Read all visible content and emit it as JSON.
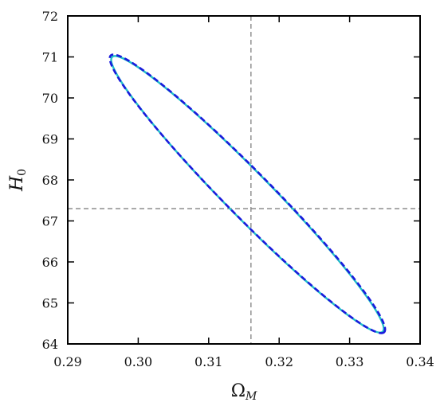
{
  "chart_data": {
    "type": "line",
    "title": "",
    "xlabel": "Ω",
    "xlabel_sub": "M",
    "ylabel": "H",
    "ylabel_sub": "0",
    "xlim": [
      0.29,
      0.34
    ],
    "ylim": [
      64,
      72
    ],
    "xticks": [
      0.29,
      0.3,
      0.31,
      0.32,
      0.33,
      0.34
    ],
    "xtick_labels": [
      "0.29",
      "0.30",
      "0.31",
      "0.32",
      "0.33",
      "0.34"
    ],
    "yticks": [
      64,
      65,
      66,
      67,
      68,
      69,
      70,
      71,
      72
    ],
    "ytick_labels": [
      "64",
      "65",
      "66",
      "67",
      "68",
      "69",
      "70",
      "71",
      "72"
    ],
    "grid": false,
    "reference_lines": {
      "x": 0.316,
      "y": 67.3,
      "color": "#808080",
      "style": "dashed"
    },
    "series": [
      {
        "style": "solid",
        "color": "#20c0c8",
        "ellipse": {
          "center": [
            0.3155,
            67.65
          ],
          "x_range": [
            0.2963,
            0.3347
          ],
          "y_range": [
            64.3,
            71.0
          ]
        },
        "values": [
          [
            0.2967,
            71.0
          ],
          [
            0.3,
            70.55
          ],
          [
            0.305,
            69.7
          ],
          [
            0.31,
            68.8
          ],
          [
            0.315,
            68.2
          ],
          [
            0.32,
            67.55
          ],
          [
            0.325,
            66.65
          ],
          [
            0.33,
            65.65
          ],
          [
            0.3347,
            64.3
          ],
          [
            0.33,
            64.8
          ],
          [
            0.325,
            65.45
          ],
          [
            0.32,
            66.05
          ],
          [
            0.315,
            66.65
          ],
          [
            0.31,
            67.5
          ],
          [
            0.305,
            68.45
          ],
          [
            0.3,
            69.35
          ],
          [
            0.2963,
            70.85
          ]
        ]
      },
      {
        "style": "dashed",
        "color": "#1a1adc",
        "ellipse": {
          "center": [
            0.3155,
            67.66
          ],
          "x_range": [
            0.2961,
            0.3349
          ],
          "y_range": [
            64.28,
            71.03
          ]
        },
        "values": [
          [
            0.2967,
            71.03
          ],
          [
            0.3,
            70.6
          ],
          [
            0.305,
            69.75
          ],
          [
            0.31,
            68.85
          ],
          [
            0.315,
            68.25
          ],
          [
            0.32,
            67.55
          ],
          [
            0.325,
            66.7
          ],
          [
            0.33,
            65.7
          ],
          [
            0.3349,
            64.28
          ],
          [
            0.33,
            64.75
          ],
          [
            0.325,
            65.4
          ],
          [
            0.32,
            66.0
          ],
          [
            0.315,
            66.6
          ],
          [
            0.31,
            67.45
          ],
          [
            0.305,
            68.4
          ],
          [
            0.3,
            69.3
          ],
          [
            0.2961,
            70.85
          ]
        ]
      }
    ]
  }
}
